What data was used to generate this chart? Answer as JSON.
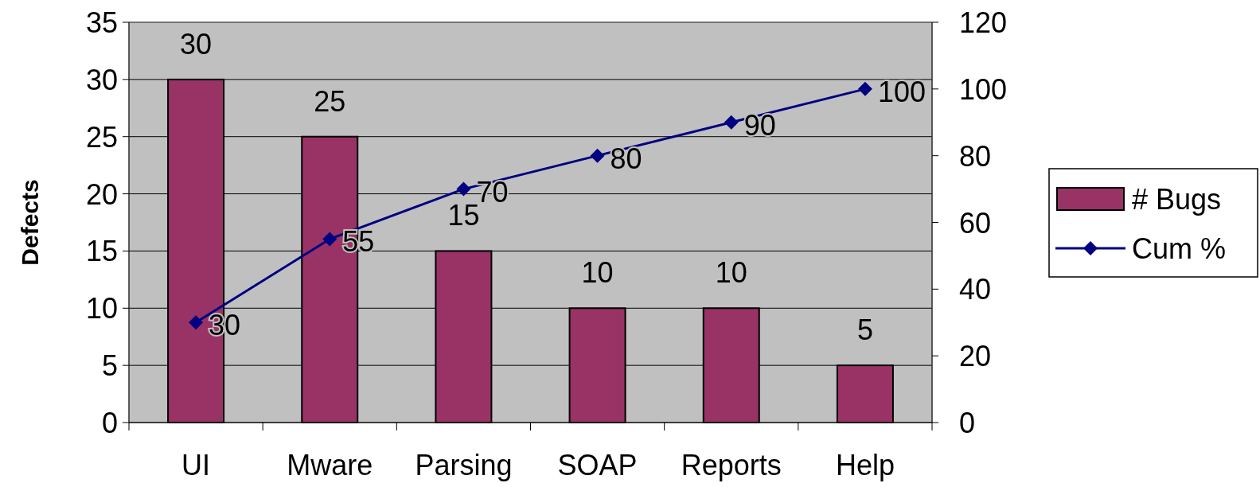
{
  "chart_data": {
    "type": "bar",
    "ylabel": "Defects",
    "categories": [
      "UI",
      "Mware",
      "Parsing",
      "SOAP",
      "Reports",
      "Help"
    ],
    "series": [
      {
        "name": "# Bugs",
        "color": "#993366",
        "values": [
          30,
          25,
          15,
          10,
          10,
          5
        ]
      },
      {
        "name": "Cum %",
        "type": "line",
        "color": "#000080",
        "axis": "y2",
        "values": [
          30,
          55,
          70,
          80,
          90,
          100
        ]
      }
    ],
    "ylim": [
      0,
      35
    ],
    "yticks": [
      0,
      5,
      10,
      15,
      20,
      25,
      30,
      35
    ],
    "y2lim": [
      0,
      120
    ],
    "y2ticks": [
      0,
      20,
      40,
      60,
      80,
      100,
      120
    ],
    "grid": "y",
    "legend": "right",
    "data_labels": true,
    "marker": "diamond"
  }
}
